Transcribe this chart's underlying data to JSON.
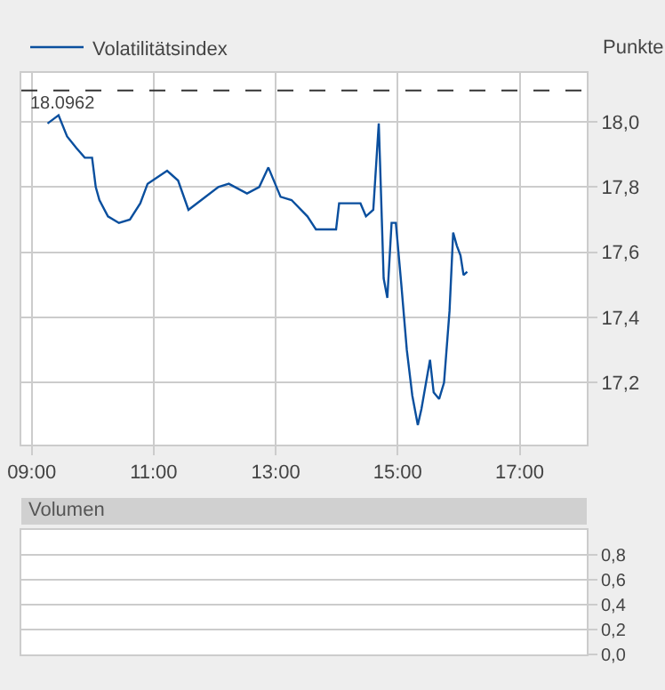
{
  "chart_data": [
    {
      "type": "line",
      "ylabel": "Punkte",
      "x": [
        9.26,
        9.44,
        9.58,
        9.73,
        9.87,
        9.99,
        10.05,
        10.11,
        10.25,
        10.43,
        10.61,
        10.78,
        10.9,
        11.22,
        11.4,
        11.57,
        11.78,
        12.06,
        12.23,
        12.53,
        12.73,
        12.88,
        13.08,
        13.26,
        13.52,
        13.66,
        13.99,
        14.04,
        14.1,
        14.39,
        14.48,
        14.6,
        14.69,
        14.71,
        14.77,
        14.83,
        14.9,
        14.97,
        15.06,
        15.15,
        15.24,
        15.33,
        15.39,
        15.53,
        15.59,
        15.68,
        15.76,
        15.85,
        15.91,
        15.97,
        16.03,
        16.08,
        16.14
      ],
      "series": [
        {
          "name": "Volatilitätsindex",
          "color": "#0a4f9e",
          "values": [
            17.995,
            18.02,
            17.955,
            17.92,
            17.89,
            17.89,
            17.8,
            17.76,
            17.71,
            17.69,
            17.7,
            17.75,
            17.81,
            17.85,
            17.82,
            17.73,
            17.76,
            17.8,
            17.81,
            17.78,
            17.8,
            17.86,
            17.77,
            17.76,
            17.71,
            17.67,
            17.67,
            17.75,
            17.75,
            17.75,
            17.71,
            17.73,
            17.995,
            17.88,
            17.52,
            17.46,
            17.69,
            17.69,
            17.5,
            17.3,
            17.16,
            17.07,
            17.12,
            17.27,
            17.17,
            17.15,
            17.2,
            17.42,
            17.66,
            17.62,
            17.59,
            17.53,
            17.54
          ]
        }
      ],
      "xlim": [
        8.83,
        18.1
      ],
      "xticks": [
        {
          "value": 9,
          "label": "09:00"
        },
        {
          "value": 11,
          "label": "11:00"
        },
        {
          "value": 13,
          "label": "13:00"
        },
        {
          "value": 15,
          "label": "15:00"
        },
        {
          "value": 17,
          "label": "17:00"
        }
      ],
      "ylim": [
        17.01,
        18.15
      ],
      "yticks": [
        {
          "value": 17.2,
          "label": "17,2"
        },
        {
          "value": 17.4,
          "label": "17,4"
        },
        {
          "value": 17.6,
          "label": "17,6"
        },
        {
          "value": 17.8,
          "label": "17,8"
        },
        {
          "value": 18.0,
          "label": "18,0"
        }
      ],
      "ref_lines": [
        {
          "axis": "y",
          "value": 18.0962,
          "label": "18.0962",
          "color": "#333333",
          "line_style": "dashed"
        }
      ],
      "grid": true,
      "legend": "top left"
    },
    {
      "type": "bar",
      "title": "Volumen",
      "xlim": [
        8.83,
        18.1
      ],
      "ylim": [
        0,
        1.0
      ],
      "yticks": [
        {
          "value": 0,
          "label": "0,0"
        },
        {
          "value": 0.2,
          "label": "0,2"
        },
        {
          "value": 0.4,
          "label": "0,4"
        },
        {
          "value": 0.6,
          "label": "0,6"
        },
        {
          "value": 0.8,
          "label": "0,8"
        }
      ],
      "grid": "y",
      "tick_labels": "y"
    }
  ]
}
